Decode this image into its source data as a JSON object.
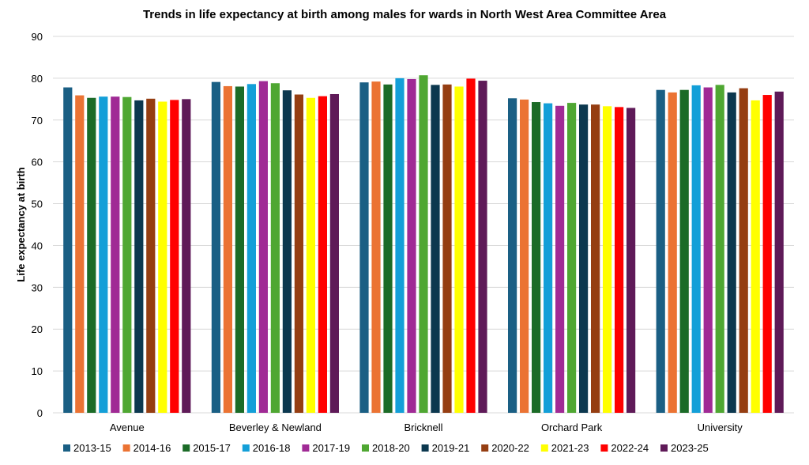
{
  "chart_data": {
    "type": "bar",
    "title": "Trends in life expectancy at birth among males for wards in North West Area Committee Area",
    "xlabel": "",
    "ylabel": "Life expectancy at birth",
    "ylim": [
      0,
      90
    ],
    "yticks": [
      0,
      10,
      20,
      30,
      40,
      50,
      60,
      70,
      80,
      90
    ],
    "grid": true,
    "legend_position": "bottom",
    "categories": [
      "Avenue",
      "Beverley & Newland",
      "Bricknell",
      "Orchard Park",
      "University"
    ],
    "series": [
      {
        "name": "2013-15",
        "color": "#1a5f84",
        "values": [
          77.8,
          79.1,
          79.0,
          75.2,
          77.2
        ]
      },
      {
        "name": "2014-16",
        "color": "#eb7333",
        "values": [
          75.9,
          78.1,
          79.2,
          74.9,
          76.6
        ]
      },
      {
        "name": "2015-17",
        "color": "#1b6b27",
        "values": [
          75.3,
          78.0,
          78.5,
          74.3,
          77.2
        ]
      },
      {
        "name": "2016-18",
        "color": "#139fd8",
        "values": [
          75.6,
          78.6,
          80.0,
          74.0,
          78.3
        ]
      },
      {
        "name": "2017-19",
        "color": "#a02a95",
        "values": [
          75.6,
          79.3,
          79.8,
          73.4,
          77.8
        ]
      },
      {
        "name": "2018-20",
        "color": "#4fa732",
        "values": [
          75.5,
          78.8,
          80.7,
          74.1,
          78.4
        ]
      },
      {
        "name": "2019-21",
        "color": "#0c384f",
        "values": [
          74.7,
          77.1,
          78.4,
          73.7,
          76.6
        ]
      },
      {
        "name": "2020-22",
        "color": "#953e12",
        "values": [
          75.1,
          76.1,
          78.5,
          73.7,
          77.6
        ]
      },
      {
        "name": "2021-23",
        "color": "#ffff00",
        "values": [
          74.4,
          75.3,
          78.0,
          73.3,
          74.7
        ]
      },
      {
        "name": "2022-24",
        "color": "#ff0000",
        "values": [
          74.8,
          75.7,
          79.9,
          73.1,
          76.0
        ]
      },
      {
        "name": "2023-25",
        "color": "#5f1a58",
        "values": [
          75.0,
          76.2,
          79.4,
          72.9,
          76.8
        ]
      }
    ]
  }
}
